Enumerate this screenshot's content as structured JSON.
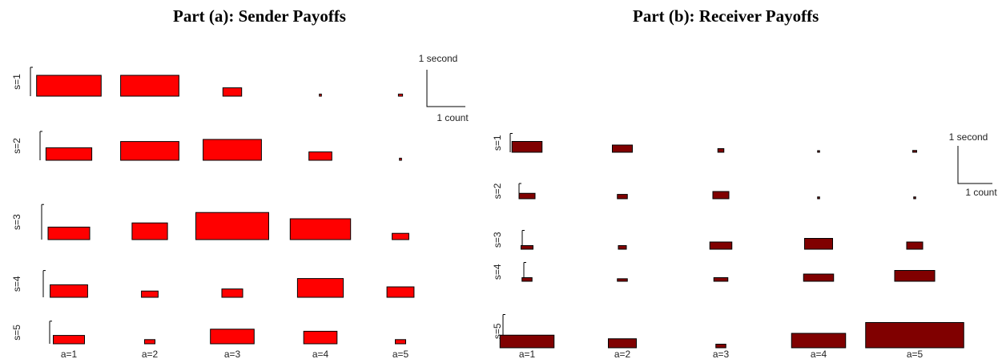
{
  "chart_data": [
    {
      "type": "bar",
      "title": "Part (a): Sender Payoffs",
      "color": "#ff0000",
      "rows": [
        "s=1",
        "s=2",
        "s=3",
        "s=4",
        "s=5"
      ],
      "columns": [
        "a=1",
        "a=2",
        "a=3",
        "a=4",
        "a=5"
      ],
      "widths_count": [
        [
          3.1,
          2.8,
          0.9,
          0.1,
          0.2
        ],
        [
          2.2,
          2.8,
          2.8,
          1.1,
          0.1
        ],
        [
          2.0,
          1.7,
          3.5,
          2.9,
          0.8
        ],
        [
          1.8,
          0.8,
          1.0,
          2.2,
          1.3
        ],
        [
          1.5,
          0.5,
          2.1,
          1.6,
          0.5
        ]
      ],
      "heights_second": [
        [
          1.0,
          1.0,
          0.4,
          0.1,
          0.1
        ],
        [
          0.6,
          0.9,
          1.0,
          0.4,
          0.1
        ],
        [
          0.6,
          0.8,
          1.3,
          1.0,
          0.3
        ],
        [
          0.6,
          0.3,
          0.4,
          0.9,
          0.5
        ],
        [
          0.4,
          0.2,
          0.7,
          0.6,
          0.2
        ]
      ],
      "scale": {
        "y_label": "1 second",
        "x_label": "1 count"
      }
    },
    {
      "type": "bar",
      "title": "Part (b): Receiver Payoffs",
      "color": "#800000",
      "rows": [
        "s=1",
        "s=2",
        "s=3",
        "s=4",
        "s=5"
      ],
      "columns": [
        "a=1",
        "a=2",
        "a=3",
        "a=4",
        "a=5"
      ],
      "widths_count": [
        [
          1.5,
          1.0,
          0.3,
          0.1,
          0.2
        ],
        [
          0.8,
          0.5,
          0.8,
          0.1,
          0.1
        ],
        [
          0.6,
          0.4,
          1.1,
          1.4,
          0.8
        ],
        [
          0.5,
          0.5,
          0.7,
          1.5,
          2.0
        ],
        [
          2.7,
          1.4,
          0.5,
          2.7,
          4.9
        ]
      ],
      "heights_second": [
        [
          0.3,
          0.2,
          0.1,
          0.02,
          0.05
        ],
        [
          0.15,
          0.12,
          0.2,
          0.05,
          0.05
        ],
        [
          0.1,
          0.1,
          0.2,
          0.3,
          0.2
        ],
        [
          0.1,
          0.07,
          0.1,
          0.2,
          0.3
        ],
        [
          0.35,
          0.25,
          0.1,
          0.4,
          0.7
        ]
      ],
      "scale": {
        "y_label": "1 second",
        "x_label": "1 count"
      }
    }
  ]
}
